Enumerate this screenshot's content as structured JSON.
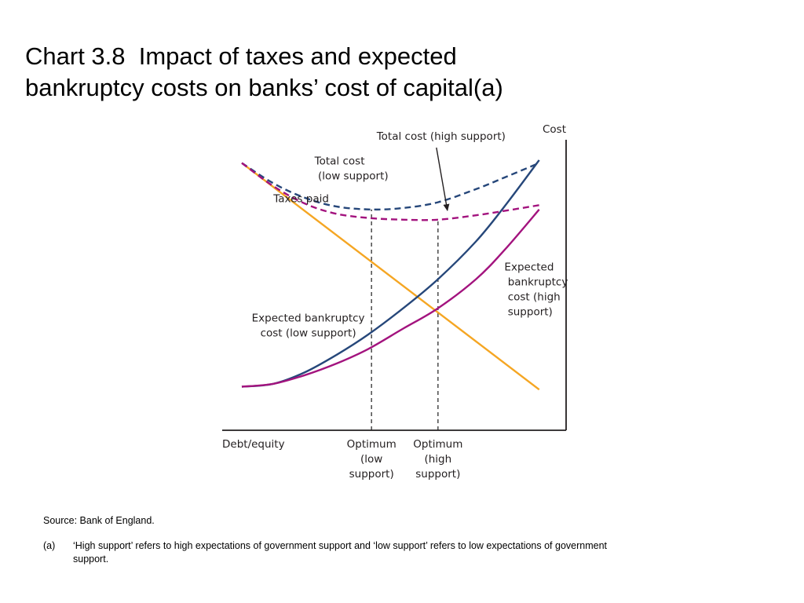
{
  "slide": {
    "title_line1": "Chart 3.8  Impact of taxes and expected",
    "title_line2": "bankruptcy costs on banks’ cost of capital(a)"
  },
  "chart_data": {
    "type": "line",
    "title": "Chart 3.8  Impact of taxes and expected bankruptcy costs on banks’ cost of capital(a)",
    "xlabel": "Debt/equity",
    "ylabel": "Cost",
    "xlim": [
      0,
      100
    ],
    "ylim": [
      0,
      100
    ],
    "grid": false,
    "axis_ticks": false,
    "colors": {
      "taxes": "#f5a623",
      "low_support": "#26477a",
      "high_support": "#a3137e",
      "axis": "#231f20",
      "optimum_lines": "#555555"
    },
    "series": [
      {
        "name": "Taxes paid",
        "style": "solid",
        "color_key": "taxes",
        "x": [
          6,
          100
        ],
        "y": [
          92,
          14
        ]
      },
      {
        "name": "Expected bankruptcy cost (low support)",
        "style": "solid",
        "color_key": "low_support",
        "x": [
          6,
          16,
          26,
          36,
          46,
          57,
          68,
          80,
          89,
          100
        ],
        "y": [
          15,
          16,
          20,
          26,
          33,
          42,
          52,
          65,
          77,
          93
        ]
      },
      {
        "name": "Expected bankruptcy cost (high support)",
        "style": "solid",
        "color_key": "high_support",
        "x": [
          6,
          16,
          26,
          36,
          46,
          57,
          68,
          80,
          89,
          100
        ],
        "y": [
          15,
          16,
          19,
          23,
          28,
          35,
          42,
          52,
          62,
          76
        ]
      },
      {
        "name": "Total cost (low support)",
        "style": "dashed",
        "color_key": "low_support",
        "x": [
          6,
          16,
          26,
          36,
          47,
          57,
          68,
          80,
          89,
          100
        ],
        "y": [
          92,
          85,
          80,
          77,
          76,
          76.5,
          78.5,
          83,
          87,
          92
        ]
      },
      {
        "name": "Total cost (high support)",
        "style": "dashed",
        "color_key": "high_support",
        "x": [
          6,
          16,
          26,
          36,
          47,
          57,
          68,
          80,
          89,
          100
        ],
        "y": [
          92,
          84,
          78,
          74.5,
          73,
          72.5,
          72.5,
          74,
          75.5,
          77.5
        ]
      }
    ],
    "optimum_markers": [
      {
        "label_lines": [
          "Optimum",
          "(low",
          "support)"
        ],
        "x": 47,
        "y_top": 76,
        "color_key": "optimum_lines"
      },
      {
        "label_lines": [
          "Optimum",
          "(high",
          "support)"
        ],
        "x": 68,
        "y_top": 72.5,
        "color_key": "optimum_lines"
      }
    ],
    "annotations": [
      {
        "lines": [
          "Total cost (high support)"
        ],
        "x": 69,
        "y": 100,
        "anchor": "middle",
        "arrow_to": {
          "x": 69,
          "y": 73.5
        }
      },
      {
        "lines": [
          "Total cost",
          " (low support)"
        ],
        "x": 29,
        "y": 91.5,
        "anchor": "start"
      },
      {
        "lines": [
          "Taxes paid"
        ],
        "x": 16,
        "y": 78.5,
        "anchor": "start"
      },
      {
        "lines": [
          "Expected bankruptcy",
          "cost (low support)"
        ],
        "x": 27,
        "y": 37.5,
        "anchor": "middle"
      },
      {
        "lines": [
          "Expected",
          " bankruptcy",
          " cost (high",
          " support)"
        ],
        "x": 89,
        "y": 55,
        "anchor": "start"
      }
    ]
  },
  "notes": {
    "source": "Source:  Bank of England.",
    "footnote_marker": "(a)",
    "footnote_text": "‘High support’ refers to high expectations of government support and ‘low support’ refers to low expectations of  government support."
  }
}
